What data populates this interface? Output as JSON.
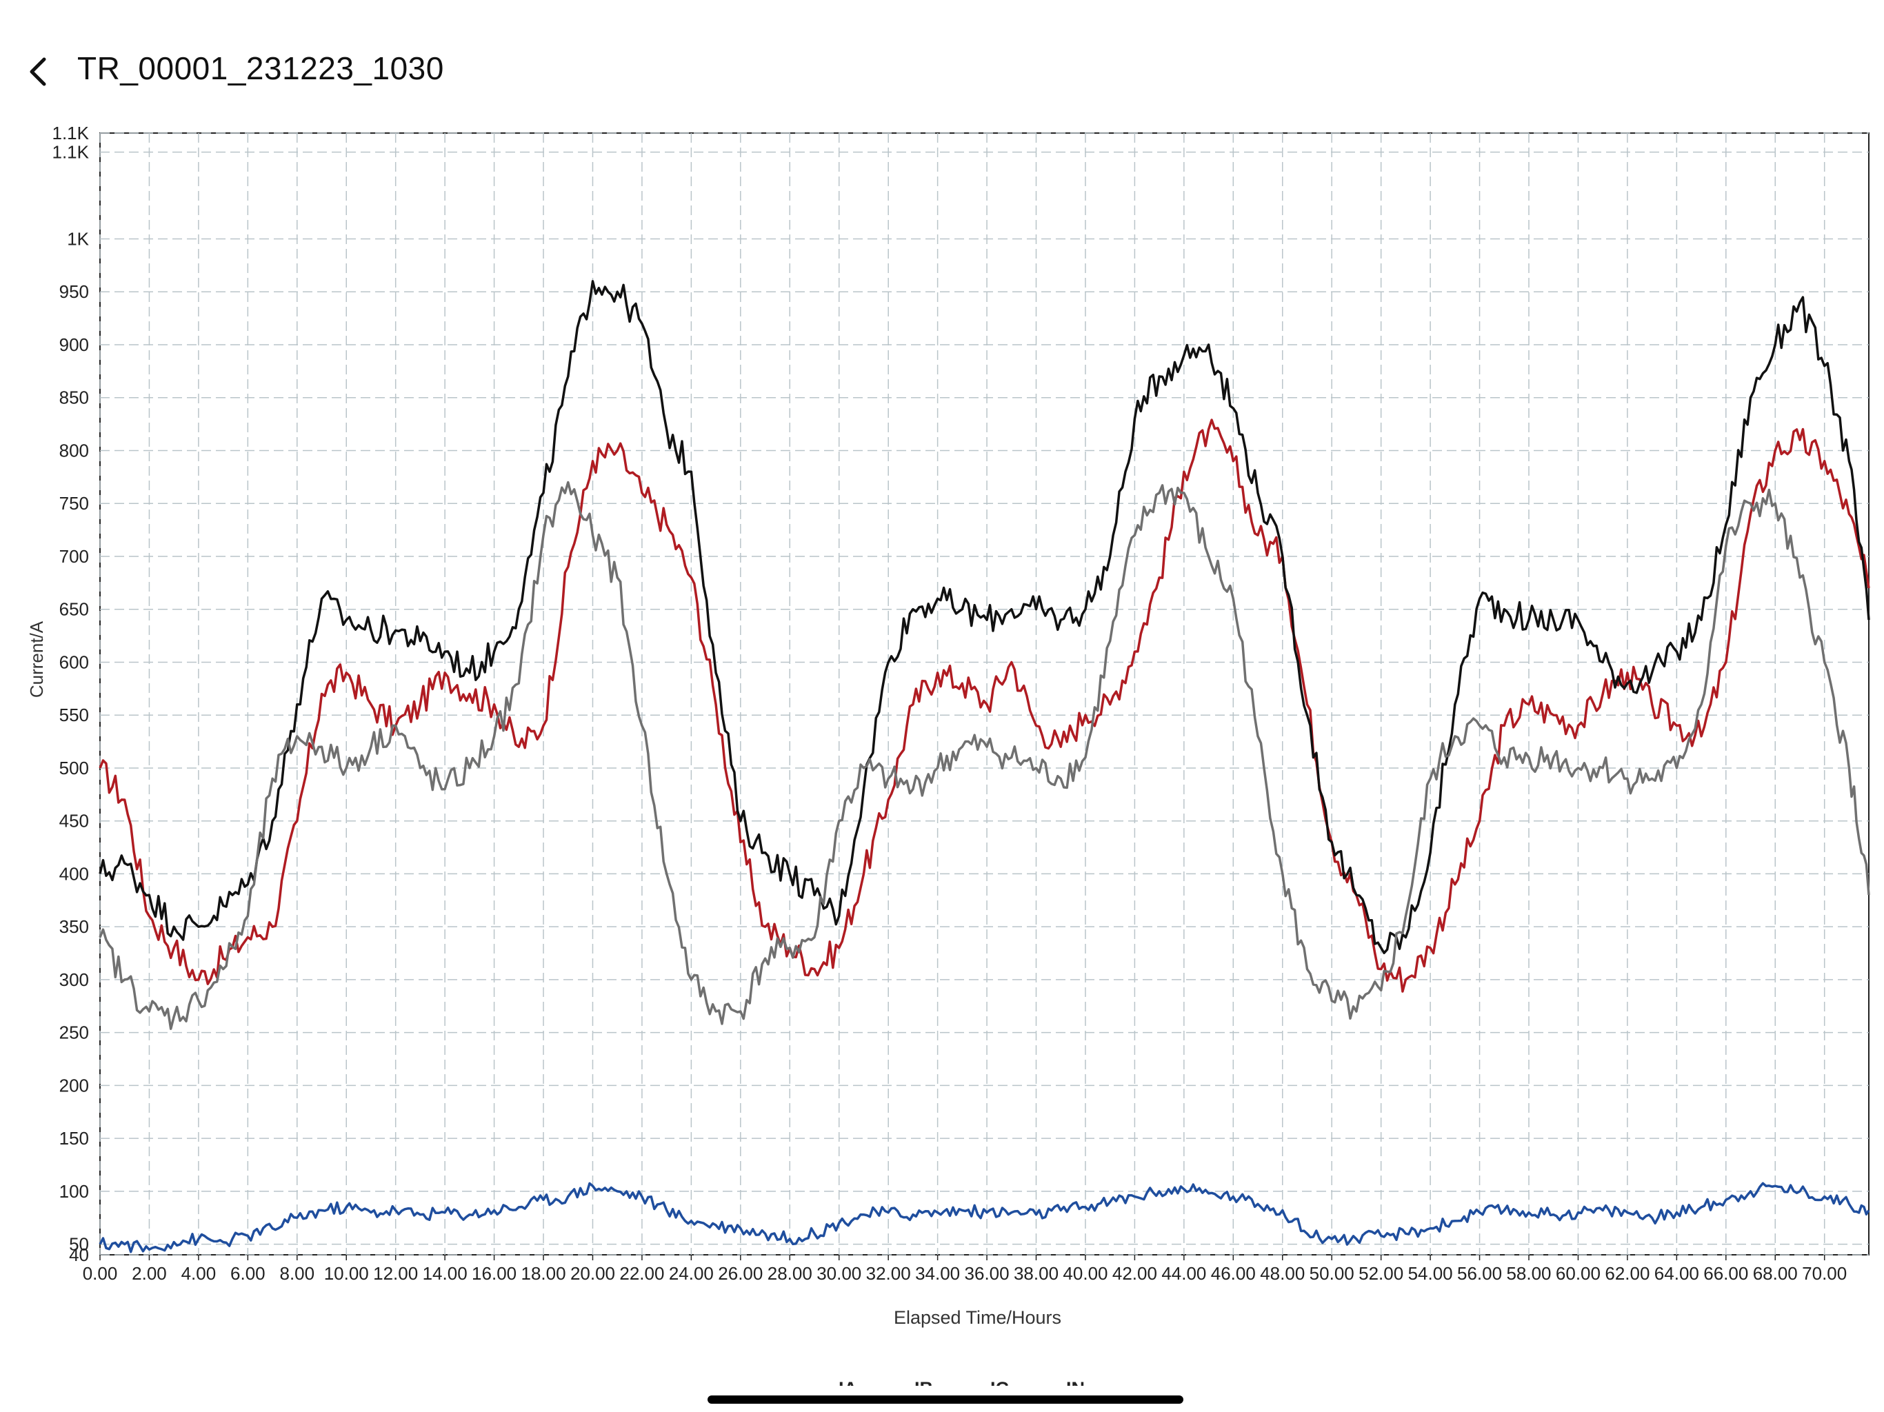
{
  "header": {
    "title": "TR_00001_231223_1030",
    "back_icon": "chevron-left-icon"
  },
  "chart_data": {
    "type": "line",
    "xlabel": "Elapsed Time/Hours",
    "ylabel": "Current/A",
    "xlim": [
      0,
      71.8
    ],
    "ylim": [
      40,
      1100
    ],
    "x_ticks": [
      "0.00",
      "2.00",
      "4.00",
      "6.00",
      "8.00",
      "10.00",
      "12.00",
      "14.00",
      "16.00",
      "18.00",
      "20.00",
      "22.00",
      "24.00",
      "26.00",
      "28.00",
      "30.00",
      "32.00",
      "34.00",
      "36.00",
      "38.00",
      "40.00",
      "42.00",
      "44.00",
      "46.00",
      "48.00",
      "50.00",
      "52.00",
      "54.00",
      "56.00",
      "58.00",
      "60.00",
      "62.00",
      "64.00",
      "66.00",
      "68.00",
      "70.00"
    ],
    "y_ticks": [
      "40",
      "50",
      "100",
      "150",
      "200",
      "250",
      "300",
      "350",
      "400",
      "450",
      "500",
      "550",
      "600",
      "650",
      "700",
      "750",
      "800",
      "850",
      "900",
      "950",
      "1K",
      "1.1K",
      "1.1K"
    ],
    "grid": true,
    "legend_position": "bottom-center",
    "x": [
      0,
      1,
      2,
      3,
      4,
      5,
      6,
      7,
      8,
      9,
      10,
      11,
      12,
      13,
      14,
      15,
      16,
      17,
      18,
      19,
      20,
      21,
      22,
      23,
      24,
      25,
      26,
      27,
      28,
      29,
      30,
      31,
      32,
      33,
      34,
      35,
      36,
      37,
      38,
      39,
      40,
      41,
      42,
      43,
      44,
      45,
      46,
      47,
      48,
      49,
      50,
      51,
      52,
      53,
      54,
      55,
      56,
      57,
      58,
      59,
      60,
      61,
      62,
      63,
      64,
      65,
      66,
      67,
      68,
      69,
      70,
      71,
      71.8
    ],
    "series": [
      {
        "name": "IA",
        "color": "#b01c22",
        "values": [
          500,
          470,
          360,
          330,
          300,
          320,
          340,
          350,
          450,
          570,
          590,
          560,
          540,
          560,
          590,
          570,
          560,
          520,
          540,
          690,
          790,
          800,
          760,
          730,
          680,
          560,
          430,
          350,
          330,
          310,
          330,
          400,
          470,
          560,
          590,
          580,
          560,
          600,
          540,
          520,
          550,
          560,
          610,
          680,
          780,
          820,
          790,
          720,
          700,
          560,
          430,
          380,
          310,
          300,
          330,
          390,
          450,
          540,
          560,
          550,
          540,
          570,
          590,
          560,
          540,
          530,
          600,
          740,
          800,
          810,
          790,
          740,
          670
        ]
      },
      {
        "name": "IB",
        "color": "#111111",
        "values": [
          400,
          410,
          380,
          350,
          350,
          370,
          390,
          450,
          560,
          660,
          640,
          630,
          630,
          620,
          610,
          590,
          610,
          650,
          760,
          870,
          960,
          950,
          920,
          820,
          780,
          590,
          450,
          420,
          400,
          380,
          360,
          480,
          600,
          650,
          660,
          650,
          640,
          650,
          650,
          640,
          650,
          700,
          830,
          870,
          890,
          900,
          840,
          760,
          700,
          550,
          430,
          380,
          330,
          340,
          420,
          560,
          660,
          650,
          640,
          640,
          640,
          600,
          580,
          590,
          610,
          640,
          730,
          850,
          900,
          940,
          880,
          790,
          640
        ]
      },
      {
        "name": "IC",
        "color": "#707070",
        "values": [
          340,
          300,
          270,
          265,
          280,
          310,
          360,
          490,
          530,
          520,
          500,
          520,
          540,
          500,
          480,
          500,
          530,
          580,
          720,
          770,
          720,
          680,
          540,
          400,
          300,
          270,
          270,
          320,
          330,
          340,
          450,
          500,
          490,
          480,
          500,
          520,
          520,
          510,
          500,
          490,
          510,
          620,
          720,
          760,
          760,
          700,
          660,
          530,
          400,
          310,
          280,
          270,
          290,
          360,
          490,
          530,
          540,
          510,
          510,
          510,
          500,
          500,
          490,
          490,
          500,
          560,
          710,
          750,
          750,
          680,
          600,
          500,
          380
        ]
      },
      {
        "name": "IN",
        "color": "#1f4e9e",
        "values": [
          50,
          50,
          45,
          52,
          55,
          52,
          58,
          65,
          75,
          82,
          85,
          80,
          82,
          78,
          80,
          78,
          82,
          85,
          92,
          95,
          105,
          100,
          95,
          82,
          72,
          68,
          65,
          60,
          55,
          60,
          70,
          78,
          80,
          78,
          80,
          82,
          80,
          80,
          78,
          82,
          85,
          90,
          95,
          100,
          102,
          98,
          95,
          88,
          82,
          60,
          55,
          55,
          58,
          60,
          65,
          72,
          80,
          82,
          80,
          78,
          80,
          82,
          80,
          75,
          80,
          85,
          92,
          100,
          105,
          100,
          95,
          88,
          82
        ]
      }
    ]
  }
}
